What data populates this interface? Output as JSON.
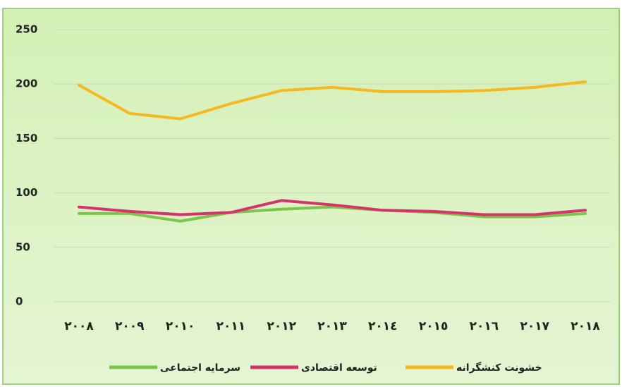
{
  "chart_data": {
    "type": "line",
    "categories": [
      "٢٠٠٨",
      "٢٠٠٩",
      "٢٠١٠",
      "٢٠١١",
      "٢٠١٢",
      "٢٠١٣",
      "٢٠١٤",
      "٢٠١٥",
      "٢٠١٦",
      "٢٠١٧",
      "٢٠١٨"
    ],
    "series": [
      {
        "name": "سرمایه اجتماعی",
        "color": "#7dc54a",
        "values": [
          81,
          81,
          74,
          82,
          85,
          87,
          84,
          82,
          78,
          78,
          81
        ]
      },
      {
        "name": "توسعه اقتصادی",
        "color": "#d6336c",
        "values": [
          87,
          83,
          80,
          82,
          93,
          89,
          84,
          83,
          80,
          80,
          84
        ]
      },
      {
        "name": "خشونت کنشگرانه",
        "color": "#f5b820",
        "values": [
          199,
          173,
          168,
          182,
          194,
          197,
          193,
          193,
          194,
          197,
          202
        ]
      }
    ],
    "ylim": [
      0,
      250
    ],
    "yticks": [
      0,
      50,
      100,
      150,
      200,
      250
    ],
    "grid": true,
    "legend": "bottom"
  }
}
